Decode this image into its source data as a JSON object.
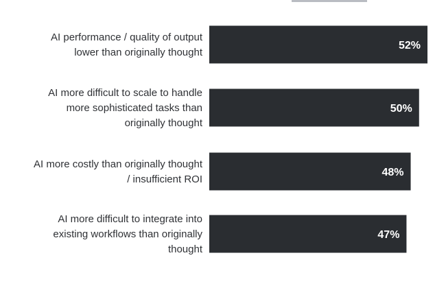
{
  "chart_data": {
    "type": "bar",
    "orientation": "horizontal",
    "categories": [
      [
        "AI performance / quality of output",
        "lower than originally thought"
      ],
      [
        "AI more difficult to scale to handle",
        "more sophisticated tasks than",
        "originally thought"
      ],
      [
        "AI more costly than originally thought",
        "/ insufficient ROI"
      ],
      [
        "AI more difficult to integrate into",
        "existing workflows than originally",
        "thought"
      ]
    ],
    "values": [
      52,
      50,
      48,
      47
    ],
    "value_labels": [
      "52%",
      "50%",
      "48%",
      "47%"
    ],
    "xlim": [
      0,
      52
    ],
    "grid": false,
    "legend": "none",
    "bar_color": "#2a2d31",
    "label_color": "#2f3135"
  }
}
